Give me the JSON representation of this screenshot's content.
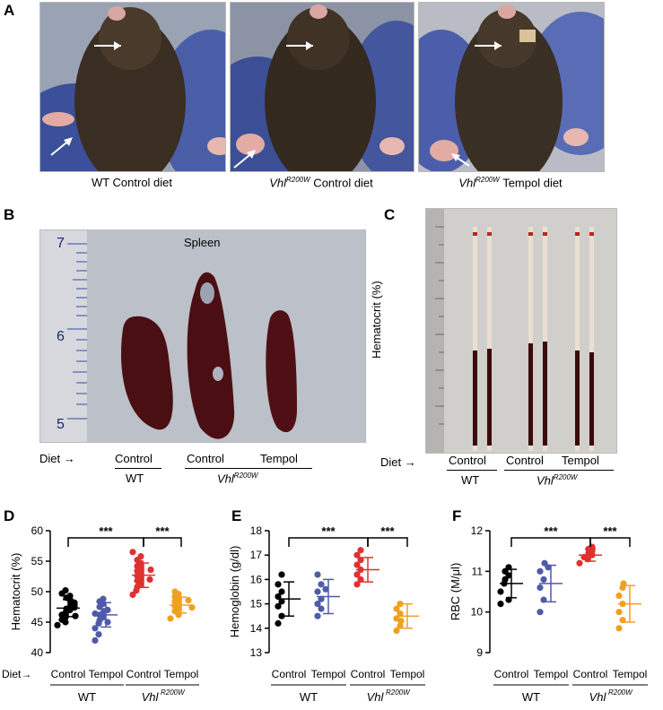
{
  "panels": {
    "A": {
      "letter": "A",
      "captions": [
        {
          "prefix": "",
          "gene": "",
          "sup": "",
          "text": "WT Control diet"
        },
        {
          "prefix": "",
          "gene": "Vhl",
          "sup": "R200W",
          "text": " Control diet"
        },
        {
          "prefix": "",
          "gene": "Vhl",
          "sup": "R200W",
          "text": " Tempol diet"
        }
      ]
    },
    "B": {
      "letter": "B",
      "photo_label": "Spleen",
      "ruler_numbers": [
        "7",
        "6",
        "5"
      ],
      "diet_label": "Diet",
      "arrow": "→",
      "groups": [
        "Control",
        "Control",
        "Tempol"
      ],
      "genotypes": {
        "wt": "WT",
        "vhl": "Vhl",
        "vhl_sup": "R200W"
      }
    },
    "C": {
      "letter": "C",
      "ylabel": "Hematocrit (%)",
      "diet_label": "Diet",
      "arrow": "→",
      "groups": [
        "Control",
        "Control",
        "Tempol"
      ],
      "genotypes": {
        "wt": "WT",
        "vhl": "Vhl",
        "vhl_sup": "R200W"
      }
    },
    "D": {
      "letter": "D"
    },
    "E": {
      "letter": "E"
    },
    "F": {
      "letter": "F"
    },
    "bottom": {
      "diet_label": "Diet",
      "groups": [
        "Control",
        "Tempol",
        "Control",
        "Tempol"
      ],
      "wt": "WT",
      "vhl": "Vhl",
      "vhl_sup": "R200W",
      "sig": "***"
    }
  },
  "chart_data": [
    {
      "type": "scatter",
      "panel": "D",
      "ylabel": "Hematocrit (%)",
      "ylim": [
        40,
        60
      ],
      "yticks": [
        40,
        45,
        50,
        55,
        60
      ],
      "categories": [
        "Control",
        "Tempol",
        "Control",
        "Tempol"
      ],
      "colors": [
        "#000000",
        "#4f5ba8",
        "#e03030",
        "#f0a020"
      ],
      "means": [
        47.3,
        46.2,
        52.7,
        47.8
      ],
      "sds": [
        1.4,
        2.0,
        2.0,
        1.3
      ],
      "series": [
        [
          44.5,
          45.0,
          45.4,
          45.8,
          46.2,
          46.5,
          46.8,
          47.0,
          47.2,
          47.4,
          47.6,
          47.8,
          48.0,
          48.2,
          48.4,
          48.7,
          49.0,
          49.3,
          49.7,
          50.2,
          46.0,
          47.1
        ],
        [
          42.0,
          43.0,
          44.0,
          44.8,
          45.3,
          45.8,
          46.2,
          46.5,
          46.8,
          47.0,
          47.5,
          48.0,
          48.4,
          48.8,
          46.4,
          45.0
        ],
        [
          49.5,
          50.2,
          50.8,
          51.3,
          51.8,
          52.2,
          52.6,
          53.0,
          53.4,
          53.8,
          54.2,
          54.7,
          55.2,
          55.8,
          56.5,
          52.0,
          53.6
        ],
        [
          45.6,
          46.2,
          46.8,
          47.2,
          47.6,
          48.0,
          48.4,
          48.8,
          49.2,
          49.6,
          50.0,
          47.4,
          48.6
        ]
      ],
      "comparisons": [
        [
          0,
          2
        ],
        [
          2,
          3
        ]
      ],
      "significance": "***"
    },
    {
      "type": "scatter",
      "panel": "E",
      "ylabel": "Hemoglobin (g/dl)",
      "ylim": [
        13,
        18
      ],
      "yticks": [
        13,
        14,
        15,
        16,
        17,
        18
      ],
      "categories": [
        "Control",
        "Tempol",
        "Control",
        "Tempol"
      ],
      "colors": [
        "#000000",
        "#4f5ba8",
        "#e03030",
        "#f0a020"
      ],
      "means": [
        15.2,
        15.3,
        16.4,
        14.5
      ],
      "sds": [
        0.7,
        0.7,
        0.5,
        0.5
      ],
      "series": [
        [
          14.2,
          14.5,
          14.9,
          15.1,
          15.3,
          15.5,
          15.8,
          16.2
        ],
        [
          14.5,
          14.8,
          15.0,
          15.2,
          15.5,
          15.8,
          16.2,
          15.6
        ],
        [
          15.8,
          16.0,
          16.2,
          16.4,
          16.6,
          16.8,
          17.0,
          17.2
        ],
        [
          13.9,
          14.1,
          14.4,
          14.6,
          14.8,
          15.0,
          14.3
        ]
      ],
      "comparisons": [
        [
          0,
          2
        ],
        [
          2,
          3
        ]
      ],
      "significance": "***"
    },
    {
      "type": "scatter",
      "panel": "F",
      "ylabel": "RBC (M/μl)",
      "ylim": [
        9,
        12
      ],
      "yticks": [
        9,
        10,
        11,
        12
      ],
      "categories": [
        "Control",
        "Tempol",
        "Control",
        "Tempol"
      ],
      "colors": [
        "#000000",
        "#4f5ba8",
        "#e03030",
        "#f0a020"
      ],
      "means": [
        10.7,
        10.7,
        11.4,
        10.2
      ],
      "sds": [
        0.35,
        0.45,
        0.15,
        0.45
      ],
      "series": [
        [
          10.2,
          10.3,
          10.5,
          10.7,
          10.8,
          10.9,
          11.0,
          11.1
        ],
        [
          10.0,
          10.3,
          10.6,
          10.8,
          11.0,
          11.1,
          11.2
        ],
        [
          11.2,
          11.3,
          11.35,
          11.4,
          11.45,
          11.5,
          11.55,
          11.6
        ],
        [
          9.6,
          9.8,
          10.0,
          10.2,
          10.4,
          10.6,
          10.7
        ]
      ],
      "comparisons": [
        [
          0,
          2
        ],
        [
          2,
          3
        ]
      ],
      "significance": "***"
    }
  ]
}
